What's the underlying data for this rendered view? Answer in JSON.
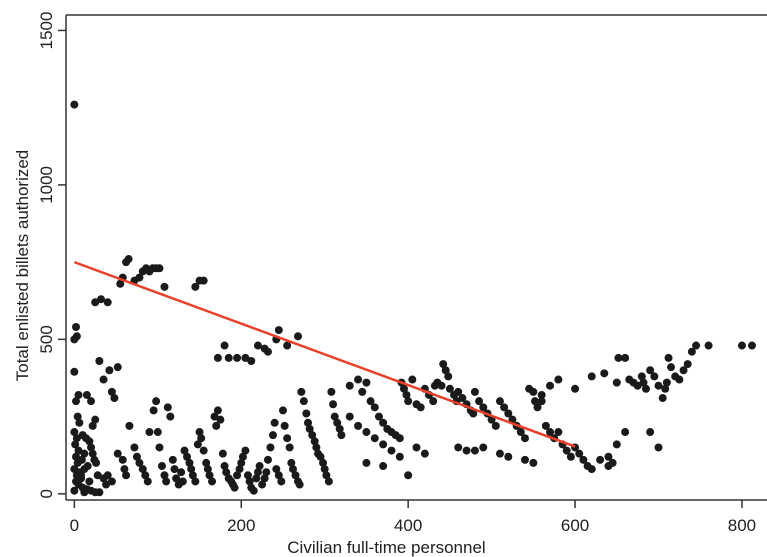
{
  "chart_data": {
    "type": "scatter",
    "xlabel": "Civilian full-time personnel",
    "ylabel": "Total enlisted billets authorized",
    "xlim": [
      -10,
      830
    ],
    "ylim": [
      -20,
      1550
    ],
    "xticks": [
      0,
      200,
      400,
      600,
      800
    ],
    "yticks": [
      0,
      500,
      1000,
      1500
    ],
    "grid": false,
    "legend": "none",
    "colors": {
      "points": "#1a1a1a",
      "fit_line": "#e8402a",
      "axis": "#333333"
    },
    "series": [
      {
        "kind": "points",
        "points": [
          [
            0,
            1260
          ],
          [
            0,
            500
          ],
          [
            0,
            395
          ],
          [
            2,
            540
          ],
          [
            3,
            510
          ],
          [
            5,
            320
          ],
          [
            2,
            300
          ],
          [
            4,
            250
          ],
          [
            6,
            230
          ],
          [
            0,
            200
          ],
          [
            3,
            180
          ],
          [
            1,
            160
          ],
          [
            5,
            140
          ],
          [
            2,
            120
          ],
          [
            4,
            100
          ],
          [
            0,
            80
          ],
          [
            6,
            70
          ],
          [
            3,
            60
          ],
          [
            8,
            50
          ],
          [
            2,
            40
          ],
          [
            5,
            30
          ],
          [
            10,
            20
          ],
          [
            15,
            15
          ],
          [
            20,
            10
          ],
          [
            25,
            5
          ],
          [
            0,
            10
          ],
          [
            12,
            5
          ],
          [
            30,
            5
          ],
          [
            10,
            190
          ],
          [
            14,
            180
          ],
          [
            18,
            170
          ],
          [
            20,
            150
          ],
          [
            22,
            130
          ],
          [
            24,
            110
          ],
          [
            26,
            100
          ],
          [
            16,
            90
          ],
          [
            12,
            80
          ],
          [
            8,
            60
          ],
          [
            28,
            60
          ],
          [
            35,
            50
          ],
          [
            38,
            30
          ],
          [
            18,
            40
          ],
          [
            12,
            130
          ],
          [
            9,
            110
          ],
          [
            20,
            300
          ],
          [
            15,
            320
          ],
          [
            25,
            240
          ],
          [
            22,
            220
          ],
          [
            25,
            620
          ],
          [
            32,
            630
          ],
          [
            40,
            620
          ],
          [
            30,
            430
          ],
          [
            42,
            400
          ],
          [
            35,
            370
          ],
          [
            45,
            330
          ],
          [
            48,
            310
          ],
          [
            52,
            410
          ],
          [
            55,
            680
          ],
          [
            58,
            700
          ],
          [
            62,
            750
          ],
          [
            65,
            760
          ],
          [
            72,
            690
          ],
          [
            78,
            700
          ],
          [
            82,
            720
          ],
          [
            86,
            730
          ],
          [
            90,
            720
          ],
          [
            94,
            730
          ],
          [
            98,
            730
          ],
          [
            102,
            730
          ],
          [
            108,
            670
          ],
          [
            145,
            670
          ],
          [
            150,
            690
          ],
          [
            155,
            690
          ],
          [
            40,
            60
          ],
          [
            45,
            40
          ],
          [
            52,
            130
          ],
          [
            58,
            110
          ],
          [
            60,
            80
          ],
          [
            62,
            60
          ],
          [
            66,
            220
          ],
          [
            72,
            150
          ],
          [
            75,
            120
          ],
          [
            78,
            100
          ],
          [
            82,
            80
          ],
          [
            85,
            60
          ],
          [
            88,
            40
          ],
          [
            90,
            200
          ],
          [
            95,
            270
          ],
          [
            98,
            300
          ],
          [
            100,
            200
          ],
          [
            102,
            150
          ],
          [
            105,
            90
          ],
          [
            108,
            60
          ],
          [
            110,
            40
          ],
          [
            112,
            280
          ],
          [
            115,
            250
          ],
          [
            118,
            110
          ],
          [
            120,
            80
          ],
          [
            122,
            50
          ],
          [
            125,
            30
          ],
          [
            128,
            70
          ],
          [
            130,
            40
          ],
          [
            132,
            140
          ],
          [
            135,
            120
          ],
          [
            138,
            100
          ],
          [
            140,
            80
          ],
          [
            142,
            60
          ],
          [
            145,
            40
          ],
          [
            148,
            160
          ],
          [
            150,
            200
          ],
          [
            152,
            180
          ],
          [
            155,
            140
          ],
          [
            158,
            100
          ],
          [
            160,
            80
          ],
          [
            162,
            60
          ],
          [
            165,
            40
          ],
          [
            168,
            250
          ],
          [
            170,
            220
          ],
          [
            172,
            270
          ],
          [
            175,
            240
          ],
          [
            178,
            130
          ],
          [
            180,
            90
          ],
          [
            182,
            70
          ],
          [
            185,
            50
          ],
          [
            188,
            40
          ],
          [
            190,
            30
          ],
          [
            192,
            20
          ],
          [
            195,
            60
          ],
          [
            198,
            80
          ],
          [
            200,
            100
          ],
          [
            202,
            120
          ],
          [
            205,
            140
          ],
          [
            208,
            60
          ],
          [
            210,
            40
          ],
          [
            212,
            20
          ],
          [
            215,
            10
          ],
          [
            218,
            50
          ],
          [
            220,
            70
          ],
          [
            222,
            90
          ],
          [
            225,
            30
          ],
          [
            228,
            50
          ],
          [
            230,
            70
          ],
          [
            232,
            110
          ],
          [
            235,
            150
          ],
          [
            238,
            190
          ],
          [
            240,
            230
          ],
          [
            242,
            80
          ],
          [
            245,
            60
          ],
          [
            248,
            40
          ],
          [
            250,
            270
          ],
          [
            252,
            220
          ],
          [
            255,
            180
          ],
          [
            258,
            150
          ],
          [
            260,
            100
          ],
          [
            262,
            80
          ],
          [
            265,
            60
          ],
          [
            268,
            40
          ],
          [
            270,
            30
          ],
          [
            272,
            330
          ],
          [
            275,
            300
          ],
          [
            278,
            260
          ],
          [
            280,
            230
          ],
          [
            282,
            210
          ],
          [
            285,
            190
          ],
          [
            288,
            170
          ],
          [
            290,
            150
          ],
          [
            292,
            130
          ],
          [
            295,
            120
          ],
          [
            298,
            100
          ],
          [
            300,
            80
          ],
          [
            302,
            60
          ],
          [
            305,
            40
          ],
          [
            308,
            330
          ],
          [
            310,
            290
          ],
          [
            312,
            250
          ],
          [
            315,
            230
          ],
          [
            318,
            210
          ],
          [
            320,
            190
          ],
          [
            185,
            440
          ],
          [
            195,
            440
          ],
          [
            205,
            440
          ],
          [
            212,
            430
          ],
          [
            220,
            480
          ],
          [
            228,
            470
          ],
          [
            232,
            460
          ],
          [
            242,
            500
          ],
          [
            245,
            530
          ],
          [
            255,
            480
          ],
          [
            268,
            510
          ],
          [
            180,
            480
          ],
          [
            172,
            440
          ],
          [
            330,
            350
          ],
          [
            340,
            370
          ],
          [
            345,
            330
          ],
          [
            350,
            360
          ],
          [
            355,
            300
          ],
          [
            360,
            280
          ],
          [
            365,
            250
          ],
          [
            370,
            230
          ],
          [
            375,
            210
          ],
          [
            380,
            200
          ],
          [
            385,
            190
          ],
          [
            390,
            180
          ],
          [
            392,
            360
          ],
          [
            395,
            340
          ],
          [
            398,
            320
          ],
          [
            400,
            300
          ],
          [
            405,
            370
          ],
          [
            410,
            290
          ],
          [
            415,
            280
          ],
          [
            420,
            340
          ],
          [
            425,
            320
          ],
          [
            430,
            300
          ],
          [
            432,
            350
          ],
          [
            435,
            360
          ],
          [
            440,
            350
          ],
          [
            442,
            420
          ],
          [
            445,
            400
          ],
          [
            448,
            380
          ],
          [
            450,
            340
          ],
          [
            455,
            320
          ],
          [
            458,
            300
          ],
          [
            460,
            330
          ],
          [
            465,
            310
          ],
          [
            470,
            290
          ],
          [
            475,
            270
          ],
          [
            478,
            260
          ],
          [
            480,
            330
          ],
          [
            485,
            300
          ],
          [
            490,
            280
          ],
          [
            495,
            260
          ],
          [
            500,
            240
          ],
          [
            505,
            220
          ],
          [
            510,
            300
          ],
          [
            515,
            280
          ],
          [
            520,
            260
          ],
          [
            525,
            240
          ],
          [
            530,
            220
          ],
          [
            535,
            200
          ],
          [
            540,
            180
          ],
          [
            545,
            340
          ],
          [
            550,
            330
          ],
          [
            552,
            300
          ],
          [
            555,
            280
          ],
          [
            560,
            300
          ],
          [
            565,
            220
          ],
          [
            570,
            200
          ],
          [
            575,
            180
          ],
          [
            580,
            200
          ],
          [
            585,
            160
          ],
          [
            590,
            140
          ],
          [
            595,
            120
          ],
          [
            600,
            150
          ],
          [
            605,
            130
          ],
          [
            610,
            110
          ],
          [
            615,
            90
          ],
          [
            620,
            80
          ],
          [
            330,
            250
          ],
          [
            340,
            220
          ],
          [
            350,
            200
          ],
          [
            360,
            180
          ],
          [
            370,
            160
          ],
          [
            380,
            140
          ],
          [
            390,
            120
          ],
          [
            350,
            100
          ],
          [
            370,
            90
          ],
          [
            400,
            60
          ],
          [
            410,
            150
          ],
          [
            420,
            130
          ],
          [
            460,
            150
          ],
          [
            470,
            140
          ],
          [
            480,
            140
          ],
          [
            490,
            150
          ],
          [
            510,
            130
          ],
          [
            520,
            120
          ],
          [
            540,
            110
          ],
          [
            550,
            100
          ],
          [
            560,
            320
          ],
          [
            570,
            350
          ],
          [
            580,
            370
          ],
          [
            600,
            340
          ],
          [
            620,
            380
          ],
          [
            635,
            390
          ],
          [
            640,
            90
          ],
          [
            645,
            100
          ],
          [
            650,
            360
          ],
          [
            652,
            440
          ],
          [
            660,
            440
          ],
          [
            665,
            370
          ],
          [
            670,
            360
          ],
          [
            675,
            350
          ],
          [
            680,
            380
          ],
          [
            682,
            360
          ],
          [
            685,
            340
          ],
          [
            690,
            400
          ],
          [
            695,
            380
          ],
          [
            700,
            350
          ],
          [
            705,
            310
          ],
          [
            708,
            340
          ],
          [
            710,
            360
          ],
          [
            712,
            440
          ],
          [
            715,
            410
          ],
          [
            720,
            380
          ],
          [
            725,
            370
          ],
          [
            730,
            400
          ],
          [
            735,
            420
          ],
          [
            740,
            460
          ],
          [
            745,
            480
          ],
          [
            760,
            480
          ],
          [
            800,
            480
          ],
          [
            812,
            480
          ],
          [
            700,
            150
          ],
          [
            690,
            200
          ],
          [
            660,
            200
          ],
          [
            650,
            160
          ],
          [
            640,
            120
          ],
          [
            630,
            110
          ]
        ]
      },
      {
        "kind": "fit_line",
        "x": [
          0,
          600
        ],
        "y": [
          750,
          153
        ]
      }
    ]
  }
}
